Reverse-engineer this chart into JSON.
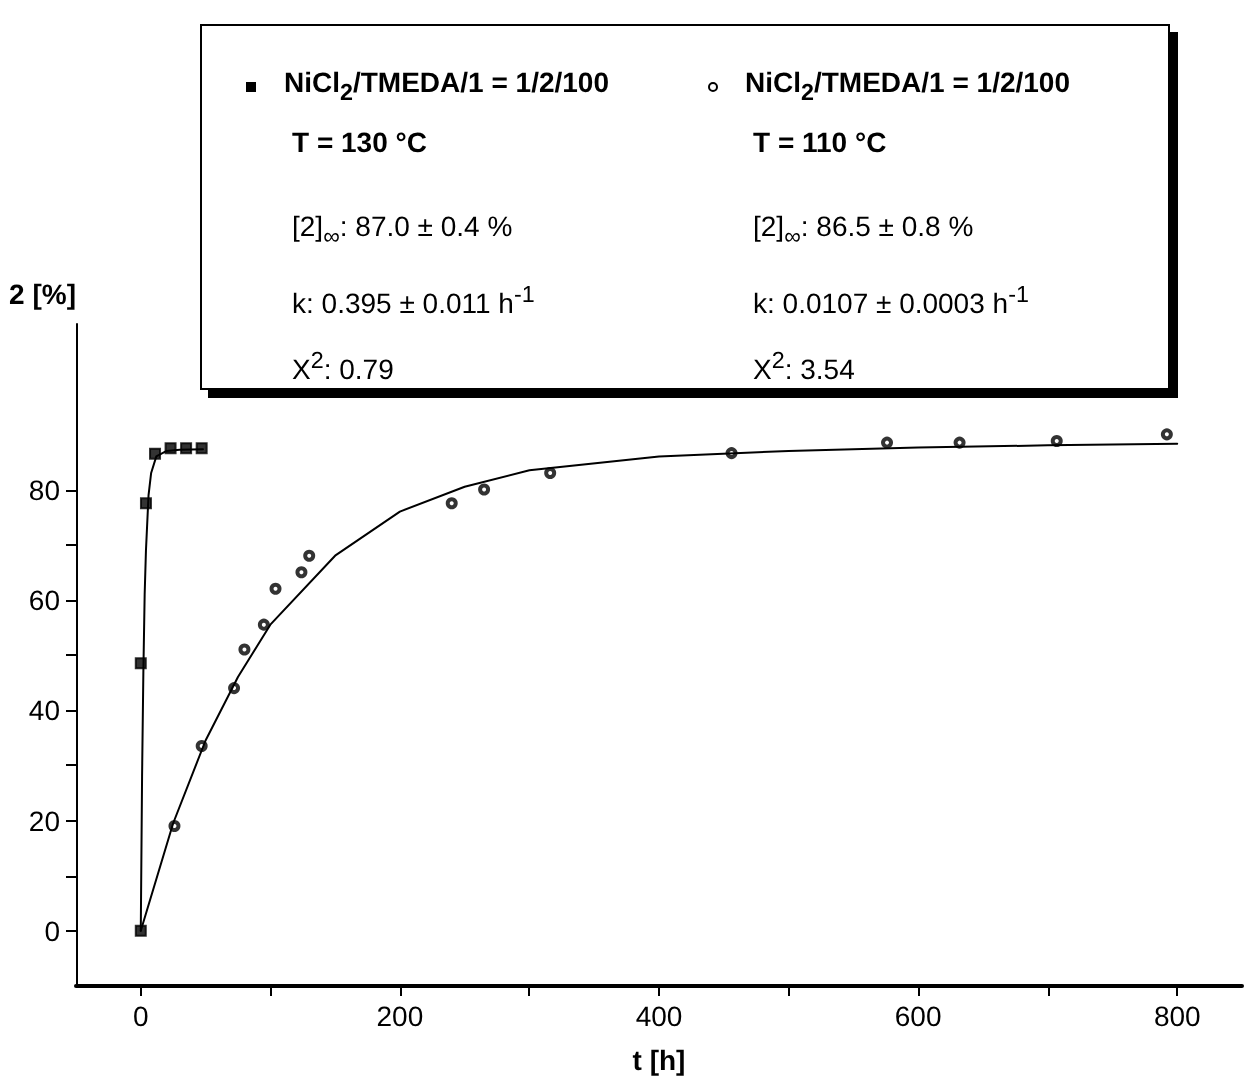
{
  "chart_data": {
    "type": "scatter",
    "xlabel": "t [h]",
    "ylabel": "2 [%]",
    "xlim": [
      -50,
      850
    ],
    "xticks": [
      0,
      {
        "value": 100,
        "label": null
      },
      200,
      {
        "value": 300,
        "label": null
      },
      400,
      {
        "value": 500,
        "label": null
      },
      600,
      {
        "value": 700,
        "label": null
      },
      800
    ],
    "ylim": [
      -10,
      110
    ],
    "yticks": [
      0,
      {
        "value": 10,
        "label": null
      },
      20,
      {
        "value": 30,
        "label": null
      },
      40,
      {
        "value": 50,
        "label": null
      },
      60,
      {
        "value": 70,
        "label": null
      },
      80
    ],
    "legend": "top",
    "grid": false,
    "series": [
      {
        "name": "NiCl$_{2}$/TMEDA/1 = 1/2/100\nT = 130 °C",
        "color": "#000000",
        "marker": "square",
        "x": [
          0,
          0,
          4,
          11,
          23,
          35,
          47
        ],
        "values": [
          0,
          48.5,
          77.5,
          86.5,
          87.5,
          87.5,
          87.5
        ]
      },
      {
        "name": "NiCl$_{2}$/TMEDA/1 = 1/2/100\nT = 110 °C",
        "color": "#000000",
        "marker": "circle",
        "x": [
          26,
          47,
          72,
          80,
          95,
          104,
          124,
          130,
          240,
          265,
          316,
          456,
          576,
          632,
          707,
          792
        ],
        "values": [
          19,
          33.5,
          44,
          51,
          55.5,
          62,
          65,
          68,
          77.5,
          80,
          83,
          86.6,
          88.5,
          88.5,
          88.8,
          90
        ]
      },
      {
        "type": "line",
        "color": "#000000",
        "marker": "none",
        "x": [
          0,
          1,
          2,
          3,
          4,
          6,
          8,
          12,
          20,
          30,
          48
        ],
        "values": [
          0,
          28,
          47,
          61,
          69,
          79,
          83,
          86,
          87,
          87.2,
          87.3
        ]
      },
      {
        "type": "line",
        "color": "#000000",
        "marker": "none",
        "x": [
          0,
          25,
          50,
          75,
          100,
          150,
          200,
          250,
          300,
          400,
          500,
          600,
          700,
          800
        ],
        "values": [
          0,
          19.5,
          34.5,
          46,
          55.5,
          68,
          76,
          80.5,
          83.5,
          86,
          87,
          87.6,
          88,
          88.3
        ]
      }
    ],
    "annotations": [
      "[2]$_{∞}$: 87.0 ± 0.4 %",
      "k: 0.395 ± 0.011 h$^{-1}$",
      "X$^{2}$: 0.79",
      "[2]$_{∞}$: 86.5 ± 0.8 %",
      "k: 0.0107 ± 0.0003 h$^{-1}$",
      "X$^{2}$: 3.54"
    ]
  }
}
